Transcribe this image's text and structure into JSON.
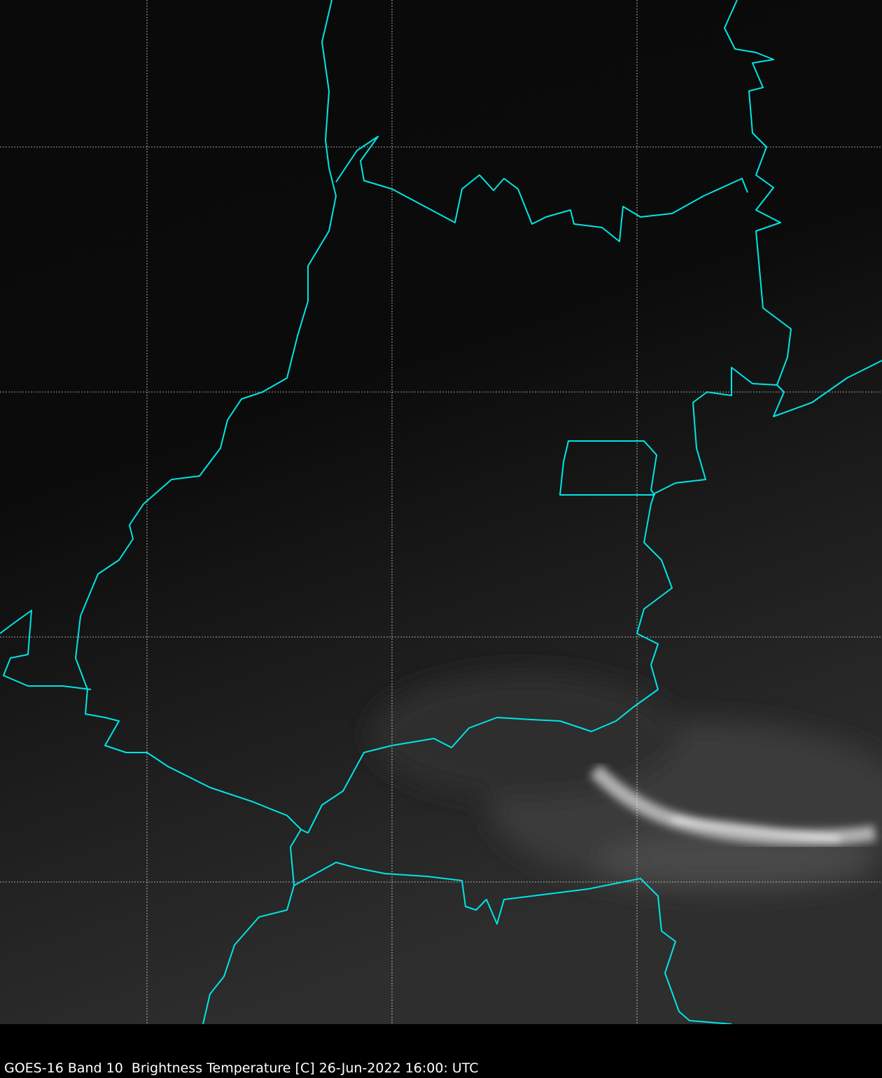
{
  "caption": "GOES-16 Band 10  Brightness Temperature [C] 26-Jun-2022 16:00: UTC",
  "colors": {
    "background": "#000000",
    "borders": "#00e5e5",
    "gridlines": "#ffffff",
    "caption_text": "#ffffff"
  },
  "imagery": {
    "satellite": "GOES-16",
    "band": "10",
    "colormap": "grayscale"
  }
}
